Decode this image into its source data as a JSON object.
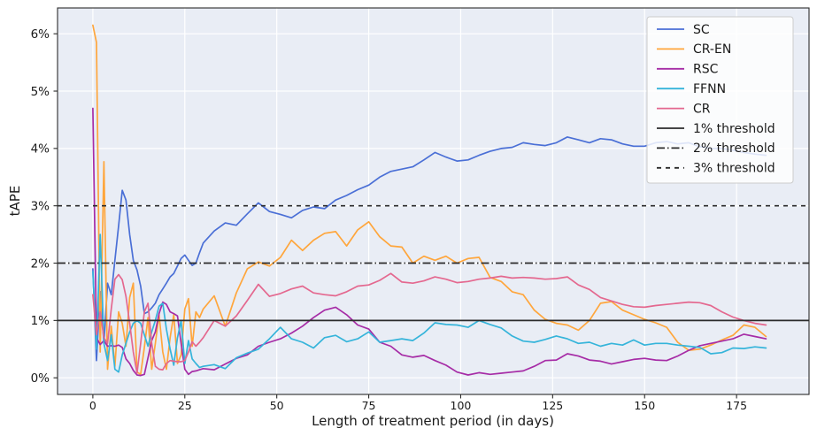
{
  "chart_data": {
    "type": "line",
    "title": "",
    "xlabel": "Length of treatment period (in days)",
    "ylabel": "tAPE",
    "xlim": [
      -9.6,
      194.7
    ],
    "ylim": [
      -0.29,
      6.45
    ],
    "xticks": [
      0,
      25,
      50,
      75,
      100,
      125,
      150,
      175
    ],
    "xtick_labels": [
      "0",
      "25",
      "50",
      "75",
      "100",
      "125",
      "150",
      "175"
    ],
    "yticks": [
      0,
      1,
      2,
      3,
      4,
      5,
      6
    ],
    "ytick_labels": [
      "0%",
      "1%",
      "2%",
      "3%",
      "4%",
      "5%",
      "6%"
    ],
    "grid": true,
    "legend_position": "upper right",
    "legend_entries": [
      "SC",
      "CR-EN",
      "RSC",
      "FFNN",
      "CR",
      "1% threshold",
      "2% threshold",
      "3% threshold"
    ],
    "x": [
      0,
      1,
      2,
      3,
      4,
      5,
      6,
      7,
      8,
      9,
      10,
      11,
      12,
      13,
      14,
      15,
      16,
      17,
      18,
      19,
      20,
      21,
      22,
      23,
      24,
      25,
      26,
      27,
      28,
      29,
      30,
      33,
      36,
      39,
      42,
      45,
      48,
      51,
      54,
      57,
      60,
      63,
      66,
      69,
      72,
      75,
      78,
      81,
      84,
      87,
      90,
      93,
      96,
      99,
      102,
      105,
      108,
      111,
      114,
      117,
      120,
      123,
      126,
      129,
      132,
      135,
      138,
      141,
      144,
      147,
      150,
      153,
      156,
      159,
      162,
      165,
      168,
      171,
      174,
      177,
      180,
      183
    ],
    "series": [
      {
        "name": "SC",
        "color": "#4a6fd6",
        "values": [
          1.9,
          0.3,
          1.5,
          0.6,
          1.65,
          1.45,
          2.05,
          2.65,
          3.27,
          3.1,
          2.5,
          2.05,
          1.88,
          1.6,
          1.12,
          1.15,
          1.22,
          1.3,
          1.45,
          1.55,
          1.65,
          1.76,
          1.82,
          1.95,
          2.08,
          2.14,
          2.05,
          1.96,
          2.0,
          2.18,
          2.35,
          2.56,
          2.7,
          2.66,
          2.86,
          3.05,
          2.9,
          2.85,
          2.79,
          2.92,
          2.98,
          2.95,
          3.1,
          3.18,
          3.28,
          3.36,
          3.5,
          3.6,
          3.64,
          3.68,
          3.8,
          3.93,
          3.85,
          3.78,
          3.8,
          3.88,
          3.95,
          4.0,
          4.02,
          4.1,
          4.07,
          4.05,
          4.1,
          4.2,
          4.15,
          4.1,
          4.17,
          4.15,
          4.08,
          4.04,
          4.04,
          4.1,
          4.12,
          4.08,
          4.1,
          4.03,
          4.0,
          4.0,
          3.97,
          3.93,
          3.9,
          3.88
        ]
      },
      {
        "name": "CR-EN",
        "color": "#ffa63c",
        "values": [
          6.15,
          5.85,
          0.45,
          3.77,
          0.15,
          0.9,
          0.2,
          1.15,
          0.95,
          0.55,
          1.4,
          1.65,
          0.1,
          0.06,
          0.53,
          1.05,
          0.15,
          0.6,
          1.1,
          0.45,
          0.15,
          0.7,
          1.1,
          0.25,
          0.4,
          1.2,
          1.38,
          0.55,
          1.15,
          1.05,
          1.2,
          1.43,
          0.9,
          1.48,
          1.9,
          2.02,
          1.95,
          2.1,
          2.4,
          2.22,
          2.4,
          2.52,
          2.55,
          2.3,
          2.58,
          2.72,
          2.46,
          2.3,
          2.28,
          2.0,
          2.12,
          2.05,
          2.12,
          2.0,
          2.08,
          2.1,
          1.75,
          1.68,
          1.5,
          1.45,
          1.18,
          1.02,
          0.95,
          0.92,
          0.83,
          1.0,
          1.3,
          1.33,
          1.18,
          1.1,
          1.02,
          0.96,
          0.88,
          0.62,
          0.48,
          0.5,
          0.57,
          0.66,
          0.74,
          0.92,
          0.88,
          0.72
        ]
      },
      {
        "name": "RSC",
        "color": "#a62ca6",
        "values": [
          4.7,
          0.7,
          0.58,
          0.65,
          0.55,
          0.56,
          0.55,
          0.57,
          0.53,
          0.33,
          0.25,
          0.13,
          0.05,
          0.04,
          0.06,
          0.35,
          0.65,
          0.8,
          1.12,
          1.32,
          1.28,
          1.15,
          1.12,
          1.08,
          0.6,
          0.15,
          0.06,
          0.11,
          0.12,
          0.14,
          0.16,
          0.14,
          0.24,
          0.34,
          0.4,
          0.55,
          0.62,
          0.68,
          0.78,
          0.9,
          1.05,
          1.18,
          1.23,
          1.1,
          0.92,
          0.85,
          0.62,
          0.55,
          0.4,
          0.36,
          0.39,
          0.3,
          0.22,
          0.1,
          0.05,
          0.09,
          0.06,
          0.08,
          0.1,
          0.12,
          0.2,
          0.3,
          0.31,
          0.42,
          0.38,
          0.31,
          0.29,
          0.24,
          0.28,
          0.32,
          0.34,
          0.31,
          0.3,
          0.38,
          0.48,
          0.56,
          0.6,
          0.64,
          0.68,
          0.76,
          0.72,
          0.68
        ]
      },
      {
        "name": "FFNN",
        "color": "#35b4da",
        "values": [
          1.85,
          0.5,
          2.5,
          0.6,
          0.3,
          0.75,
          0.15,
          0.1,
          0.4,
          0.6,
          0.8,
          0.95,
          1.0,
          0.95,
          0.75,
          0.55,
          0.8,
          1.0,
          1.25,
          1.3,
          0.85,
          0.5,
          0.22,
          0.7,
          1.0,
          0.25,
          0.65,
          0.33,
          0.25,
          0.18,
          0.2,
          0.23,
          0.16,
          0.35,
          0.43,
          0.5,
          0.68,
          0.88,
          0.68,
          0.62,
          0.52,
          0.7,
          0.74,
          0.63,
          0.68,
          0.8,
          0.62,
          0.65,
          0.68,
          0.65,
          0.78,
          0.96,
          0.93,
          0.92,
          0.88,
          1.0,
          0.93,
          0.87,
          0.73,
          0.64,
          0.62,
          0.67,
          0.73,
          0.68,
          0.6,
          0.62,
          0.55,
          0.6,
          0.57,
          0.66,
          0.57,
          0.6,
          0.6,
          0.57,
          0.55,
          0.53,
          0.42,
          0.44,
          0.52,
          0.51,
          0.54,
          0.52
        ]
      },
      {
        "name": "CR",
        "color": "#e4688f",
        "values": [
          1.45,
          0.75,
          1.15,
          0.7,
          0.6,
          1.2,
          1.72,
          1.8,
          1.71,
          1.42,
          0.95,
          0.45,
          0.08,
          0.6,
          1.15,
          1.3,
          0.6,
          0.2,
          0.15,
          0.14,
          0.25,
          0.3,
          0.29,
          0.28,
          0.28,
          0.3,
          0.45,
          0.63,
          0.55,
          0.62,
          0.7,
          1.0,
          0.9,
          1.08,
          1.35,
          1.63,
          1.42,
          1.47,
          1.55,
          1.6,
          1.48,
          1.45,
          1.43,
          1.5,
          1.6,
          1.62,
          1.7,
          1.82,
          1.67,
          1.65,
          1.69,
          1.76,
          1.72,
          1.66,
          1.68,
          1.72,
          1.74,
          1.77,
          1.74,
          1.75,
          1.74,
          1.72,
          1.73,
          1.76,
          1.62,
          1.54,
          1.4,
          1.34,
          1.28,
          1.24,
          1.23,
          1.26,
          1.28,
          1.3,
          1.32,
          1.31,
          1.26,
          1.15,
          1.06,
          1.0,
          0.95,
          0.92
        ]
      }
    ],
    "thresholds": [
      {
        "name": "1% threshold",
        "value": 1,
        "dash": "solid",
        "color": "#2b2b2b"
      },
      {
        "name": "2% threshold",
        "value": 2,
        "dash": "dashdot",
        "color": "#2b2b2b"
      },
      {
        "name": "3% threshold",
        "value": 3,
        "dash": "dashed",
        "color": "#2b2b2b"
      }
    ],
    "colors": {
      "plot_bg": "#e9edf5",
      "grid": "#ffffff",
      "spine": "#2a2a2a",
      "tick_label": "#1a1a1a",
      "legend_bg": "rgba(255,255,255,0.82)",
      "legend_border": "#cccccc"
    }
  }
}
